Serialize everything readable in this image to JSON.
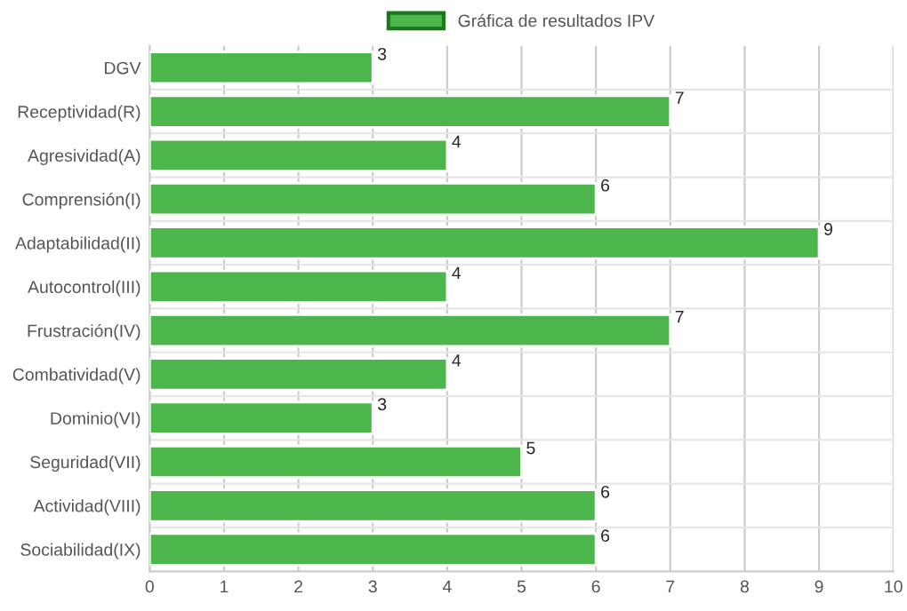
{
  "chart_data": {
    "type": "bar",
    "orientation": "horizontal",
    "categories": [
      "DGV",
      "Receptividad(R)",
      "Agresividad(A)",
      "Comprensión(I)",
      "Adaptabilidad(II)",
      "Autocontrol(III)",
      "Frustración(IV)",
      "Combatividad(V)",
      "Dominio(VI)",
      "Seguridad(VII)",
      "Actividad(VIII)",
      "Sociabilidad(IX)"
    ],
    "series": [
      {
        "name": "Gráfica de resultados IPV",
        "color": "#4cb54c",
        "values": [
          3,
          7,
          4,
          6,
          9,
          4,
          7,
          4,
          3,
          5,
          6,
          6
        ]
      }
    ],
    "xlim": [
      0,
      10
    ],
    "xticks": [
      0,
      1,
      2,
      3,
      4,
      5,
      6,
      7,
      8,
      9,
      10
    ],
    "grid": true,
    "legend": "top",
    "data_labels": true
  }
}
